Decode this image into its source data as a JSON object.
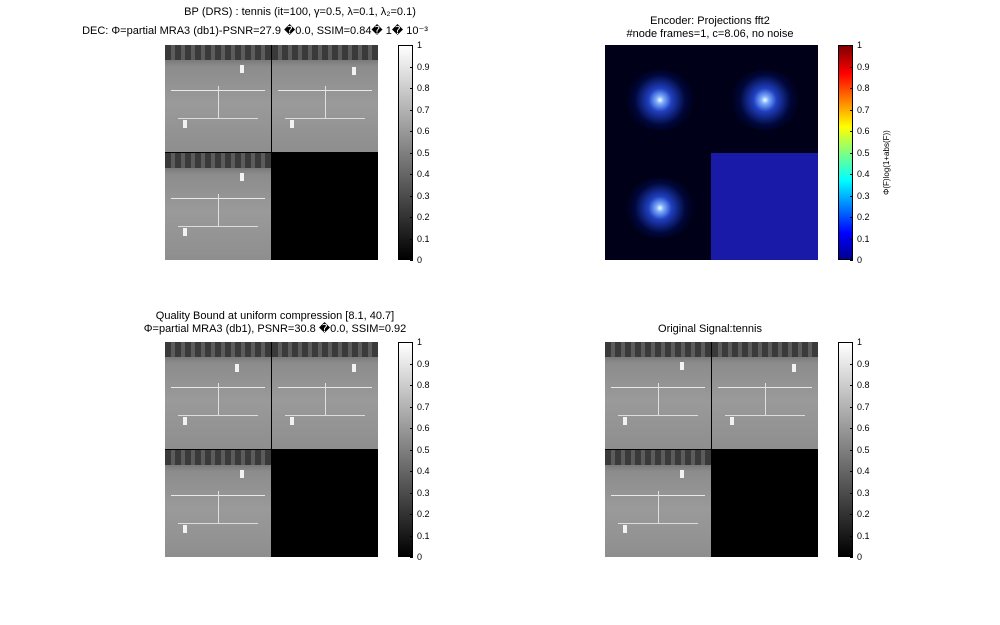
{
  "panels": {
    "top_left": {
      "title_line1": "BP (DRS) : tennis (it=100, γ=0.5, λ=0.1, λ₂=0.1)",
      "title_line2": "DEC: Φ=partial MRA3 (db1)-PSNR=27.9 �0.0, SSIM=0.84� 1� 10⁻³"
    },
    "top_right": {
      "title_line1": "Encoder: Projections fft2",
      "title_line2": "#node frames=1, c=8.06, no noise",
      "colorbar_label": "Φ(F)log(1+abs(F))"
    },
    "bottom_left": {
      "title_line1": "Quality Bound at  uniform  compression [8.1, 40.7]",
      "title_line2": "Φ=partial MRA3 (db1), PSNR=30.8 �0.0, SSIM=0.92"
    },
    "bottom_right": {
      "title_line1": "Original Signal:tennis"
    }
  },
  "colorbar_ticks": [
    "1",
    "0.9",
    "0.8",
    "0.7",
    "0.6",
    "0.5",
    "0.4",
    "0.3",
    "0.2",
    "0.1",
    "0"
  ]
}
